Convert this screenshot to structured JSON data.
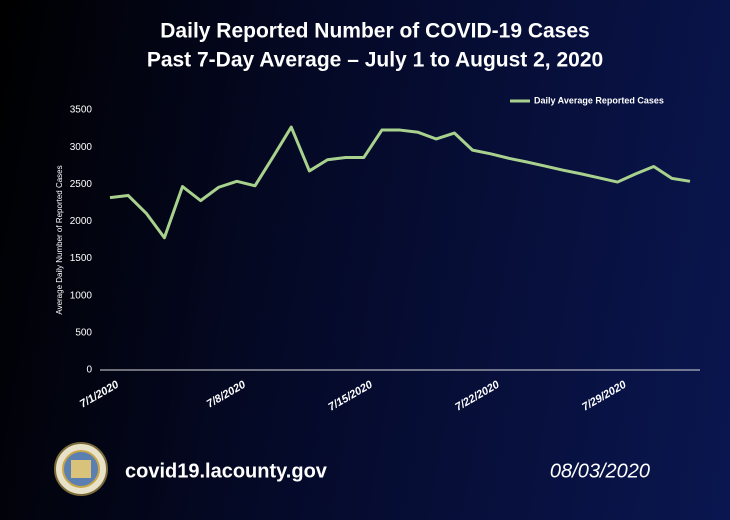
{
  "chart_data": {
    "type": "line",
    "title": "Daily Reported Number of COVID-19 Cases",
    "subtitle": "Past 7-Day Average – July 1 to August 2, 2020",
    "y_label": "Average Daily Number of Reported Cases",
    "categories": [
      "7/1/2020",
      null,
      null,
      null,
      null,
      null,
      null,
      "7/8/2020",
      null,
      null,
      null,
      null,
      null,
      null,
      "7/15/2020",
      null,
      null,
      null,
      null,
      null,
      null,
      "7/22/2020",
      null,
      null,
      null,
      null,
      null,
      null,
      "7/29/2020",
      null,
      null,
      null,
      null
    ],
    "series": [
      {
        "name": "Daily Average Reported Cases",
        "color": "#a9d18e",
        "values": [
          2320,
          2350,
          2110,
          1780,
          2470,
          2280,
          2460,
          2540,
          2480,
          2870,
          3270,
          2680,
          2830,
          2860,
          2860,
          3230,
          3230,
          3200,
          3110,
          3190,
          2960,
          2910,
          2850,
          2800,
          2745,
          2690,
          2640,
          2585,
          2530,
          2640,
          2740,
          2580,
          2540
        ]
      }
    ],
    "ylim": [
      0,
      3500
    ],
    "yticks": [
      0,
      500,
      1000,
      1500,
      2000,
      2500,
      3000,
      3500
    ],
    "legend": "top-right"
  },
  "footer": {
    "site": "covid19.lacounty.gov",
    "date": "08/03/2020"
  }
}
